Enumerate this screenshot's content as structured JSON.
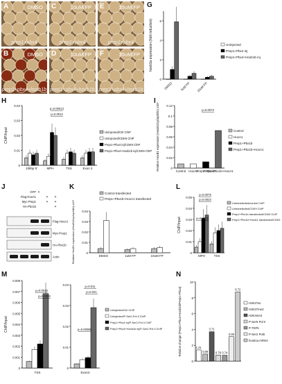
{
  "figure": {
    "photos": [
      {
        "letter": "A",
        "condition": "DMSO",
        "caption": "prep1+pbx4",
        "tone": "plain"
      },
      {
        "letter": "C",
        "condition": "10uM FP",
        "caption": "prep1+pbx4",
        "tone": "plain"
      },
      {
        "letter": "E",
        "condition": "35uM FP",
        "caption": "prep1+pbx4",
        "tone": "plain"
      },
      {
        "letter": "B",
        "condition": "DMSO",
        "caption": "prep1+pbx4+hoxb1b",
        "tone": "stained"
      },
      {
        "letter": "D",
        "condition": "10uM FP",
        "caption": "prep1+pbx4+hoxb1b",
        "tone": "plain"
      },
      {
        "letter": "F",
        "condition": "35uM FP",
        "caption": "prep1+pbx4+hoxb1b",
        "tone": "plain"
      }
    ],
    "blot": {
      "letter": "J",
      "rows": [
        "GFP",
        "Flag-HoxA1",
        "Myc-Prep1",
        "HA-Pbx1b"
      ],
      "pluses": [
        [
          1,
          0,
          0
        ],
        [
          0,
          1,
          1
        ],
        [
          0,
          1,
          1
        ],
        [
          0,
          0,
          1
        ]
      ],
      "bands": [
        "Flag-HoxA1",
        "Myc-Prep1",
        "HA-Pbx1b",
        "Actin"
      ]
    }
  },
  "chart_data": [
    {
      "id": "G",
      "type": "bar",
      "ylabel": "hoxb1a expression (fold induction)",
      "categories": [
        "DMSO",
        "5uM FP",
        "10uM FP"
      ],
      "ylim": [
        0,
        7
      ],
      "yticks": [
        0,
        2,
        4,
        6
      ],
      "series": [
        {
          "name": "Uninjected",
          "color": "#ffffff",
          "values": [
            0,
            0,
            0
          ]
        },
        {
          "name": "Prep1+Pbx4 inj",
          "color": "#000000",
          "values": [
            1.0,
            0.3,
            0.2
          ]
        },
        {
          "name": "Prep1+Pbx4+Hoxb1b inj",
          "color": "#666666",
          "values": [
            5.9,
            0.6,
            0.3
          ]
        }
      ]
    },
    {
      "id": "H",
      "type": "bar",
      "ylabel": "ChIP/Input",
      "categories": [
        "10kbp 5'",
        "MPH",
        "TSS",
        "Exon 2"
      ],
      "ylim": [
        0,
        0.04
      ],
      "yticks": [
        0,
        0.01,
        0.02,
        0.03,
        0.04
      ],
      "series": [
        {
          "name": "Uninjected/Ctrl ChIP",
          "color": "#bbbbbb",
          "values": [
            0.005,
            0.003,
            0.004,
            0.005
          ]
        },
        {
          "name": "Uninjected/CDK9 ChIP",
          "color": "#ffffff",
          "values": [
            0.008,
            0.006,
            0.008,
            0.008
          ]
        },
        {
          "name": "Prep1+Pbx4 inj/CDK9 ChIP",
          "color": "#000000",
          "values": [
            0.007,
            0.022,
            0.009,
            0.009
          ]
        },
        {
          "name": "Prep1+Pbx4+Hoxb1b inj/CDK9 ChIP",
          "color": "#666666",
          "values": [
            0.008,
            0.02,
            0.008,
            0.009
          ]
        }
      ],
      "annotations": [
        "p=0.00013",
        "p=0.0012"
      ]
    },
    {
      "id": "I",
      "type": "bar",
      "ylabel": "Relative HoxB1 expression (HoxB1/cyclophilin) x10⁵",
      "categories": [
        "Control",
        "HoxA1",
        "Prep1+Pbx1b",
        "Prep1+Pbx1b+HoxA1"
      ],
      "ylim": [
        0,
        0.12
      ],
      "yticks": [
        0,
        0.02,
        0.04,
        0.06,
        0.08,
        0.1,
        0.12
      ],
      "series": [
        {
          "name": "",
          "colors": [
            "#bbbbbb",
            "#ffffff",
            "#000000",
            "#666666"
          ],
          "values": [
            0.008,
            0.008,
            0.012,
            0.072
          ]
        }
      ],
      "annotations": [
        "p=0.0073"
      ]
    },
    {
      "id": "K",
      "type": "bar",
      "ylabel": "Relative HoxB1 expression (HoxB1/cyclophilin) x10⁵",
      "categories": [
        "DMSO",
        "1uM FP",
        "10uM FP"
      ],
      "ylim": [
        0,
        0.04
      ],
      "yticks": [
        0,
        0.01,
        0.02,
        0.03,
        0.04
      ],
      "series": [
        {
          "name": "Control transfected",
          "color": "#bbbbbb",
          "values": [
            0.004,
            0.003,
            0.004
          ]
        },
        {
          "name": "Prep1+Pbx1b+HoxA1 transfected",
          "color": "#ffffff",
          "values": [
            0.031,
            0.004,
            0.005
          ]
        }
      ]
    },
    {
      "id": "L",
      "type": "bar",
      "ylabel": "ChIP/Input",
      "categories": [
        "MPH",
        "TSS"
      ],
      "ylim": [
        0,
        0.05
      ],
      "yticks": [
        0,
        0.01,
        0.02,
        0.03,
        0.04,
        0.05
      ],
      "series": [
        {
          "name": "Untransfected/control ChIP",
          "color": "#bbbbbb",
          "values": [
            0.005,
            0.008
          ]
        },
        {
          "name": "Untransfected/CDK9 ChIP",
          "color": "#ffffff",
          "values": [
            0.01,
            0.018
          ]
        },
        {
          "name": "Prep1+Pbx1b transfected/CDK9 ChIP",
          "color": "#000000",
          "values": [
            0.031,
            0.02
          ]
        },
        {
          "name": "Prep1+Pbx1b+HoxA1 transfected/CDK9 ChIP",
          "color": "#666666",
          "values": [
            0.034,
            0.022
          ]
        }
      ],
      "annotations": [
        "p=0.0075",
        "p=0.0023",
        "p=0.0002"
      ]
    },
    {
      "id": "M1",
      "type": "bar",
      "ylabel": "ChIP/Input",
      "categories": [
        "TSS"
      ],
      "ylim": [
        0,
        0.008
      ],
      "yticks": [
        0,
        0.001,
        0.002,
        0.003,
        0.004,
        0.005,
        0.006,
        0.007,
        0.008
      ],
      "series": [
        {
          "name": "Uninjected/Ctrl ChIP",
          "color": "#bbbbbb",
          "values": [
            0.0006
          ]
        },
        {
          "name": "Uninjected/P-Ser2-Pol II ChIP",
          "color": "#ffffff",
          "values": [
            0.0017
          ]
        },
        {
          "name": "Prep1+Pbx4 inj/P-Ser2-Pol II ChIP",
          "color": "#000000",
          "values": [
            0.0022
          ]
        },
        {
          "name": "Prep1+Pbx4+Hoxb1b inj/P-Ser2-Pol II ChIP",
          "color": "#666666",
          "values": [
            0.0068
          ]
        }
      ],
      "annotations": [
        "p=0.0016",
        "p=0.0050"
      ]
    },
    {
      "id": "M2",
      "type": "bar",
      "ylabel": "",
      "categories": [
        "Exon2"
      ],
      "ylim": [
        0,
        0.04
      ],
      "yticks": [
        0,
        0.01,
        0.02,
        0.03,
        0.04
      ],
      "series": [
        {
          "name": "Uninjected/Ctrl ChIP",
          "color": "#bbbbbb",
          "values": [
            0.002
          ]
        },
        {
          "name": "Uninjected/P-Ser2-Pol II ChIP",
          "color": "#ffffff",
          "values": [
            0.004
          ]
        },
        {
          "name": "Prep1+Pbx4 inj/P-Ser2-Pol II ChIP",
          "color": "#000000",
          "values": [
            0.005
          ]
        },
        {
          "name": "Prep1+Pbx4+Hoxb1b inj/P-Ser2-Pol II ChIP",
          "color": "#666666",
          "values": [
            0.029
          ]
        }
      ],
      "annotations": [
        "p=0.011",
        "p=0.021",
        "p=0.00080"
      ]
    },
    {
      "id": "N",
      "type": "bar",
      "ylabel": "Relative change (Prep1+Pbx4+Hoxb1b/Prep1+Pbx4)",
      "categories": [
        "H3K27ac",
        "H3K27me3",
        "H3K4me3",
        "P-Ser5 Pol II",
        "P-TEFb",
        "P-Ser2 PolII",
        "hoxb1a mRNA"
      ],
      "ylim": [
        0,
        10
      ],
      "yticks": [
        0,
        2,
        4,
        6,
        8,
        10
      ],
      "series": [
        {
          "name": "",
          "colors": [
            "#ffffff",
            "#bbbbbb",
            "#555555",
            "#dddddd",
            "#999999",
            "#eeeeee",
            "#cccccc"
          ],
          "values": [
            1.41,
            0.89,
            3.71,
            0.76,
            0.74,
            3.09,
            8.72
          ]
        }
      ],
      "data_labels": [
        "1.41",
        "0.89",
        "3.71",
        "0.76",
        "0.74",
        "3.09",
        "8.72"
      ]
    }
  ]
}
